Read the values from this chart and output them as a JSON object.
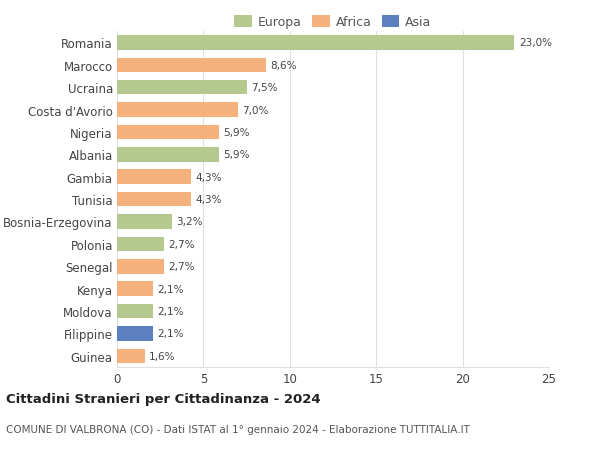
{
  "countries": [
    "Romania",
    "Marocco",
    "Ucraina",
    "Costa d'Avorio",
    "Nigeria",
    "Albania",
    "Gambia",
    "Tunisia",
    "Bosnia-Erzegovina",
    "Polonia",
    "Senegal",
    "Kenya",
    "Moldova",
    "Filippine",
    "Guinea"
  ],
  "values": [
    23.0,
    8.6,
    7.5,
    7.0,
    5.9,
    5.9,
    4.3,
    4.3,
    3.2,
    2.7,
    2.7,
    2.1,
    2.1,
    2.1,
    1.6
  ],
  "labels": [
    "23,0%",
    "8,6%",
    "7,5%",
    "7,0%",
    "5,9%",
    "5,9%",
    "4,3%",
    "4,3%",
    "3,2%",
    "2,7%",
    "2,7%",
    "2,1%",
    "2,1%",
    "2,1%",
    "1,6%"
  ],
  "continents": [
    "Europa",
    "Africa",
    "Europa",
    "Africa",
    "Africa",
    "Europa",
    "Africa",
    "Africa",
    "Europa",
    "Europa",
    "Africa",
    "Africa",
    "Europa",
    "Asia",
    "Africa"
  ],
  "colors": {
    "Europa": "#b5c98e",
    "Africa": "#f5b17b",
    "Asia": "#5b7fbf"
  },
  "legend_order": [
    "Europa",
    "Africa",
    "Asia"
  ],
  "title": "Cittadini Stranieri per Cittadinanza - 2024",
  "subtitle": "COMUNE DI VALBRONA (CO) - Dati ISTAT al 1° gennaio 2024 - Elaborazione TUTTITALIA.IT",
  "xlim": [
    0,
    25
  ],
  "xticks": [
    0,
    5,
    10,
    15,
    20,
    25
  ],
  "bg_color": "#ffffff",
  "grid_color": "#e0e0e0",
  "bar_height": 0.65
}
